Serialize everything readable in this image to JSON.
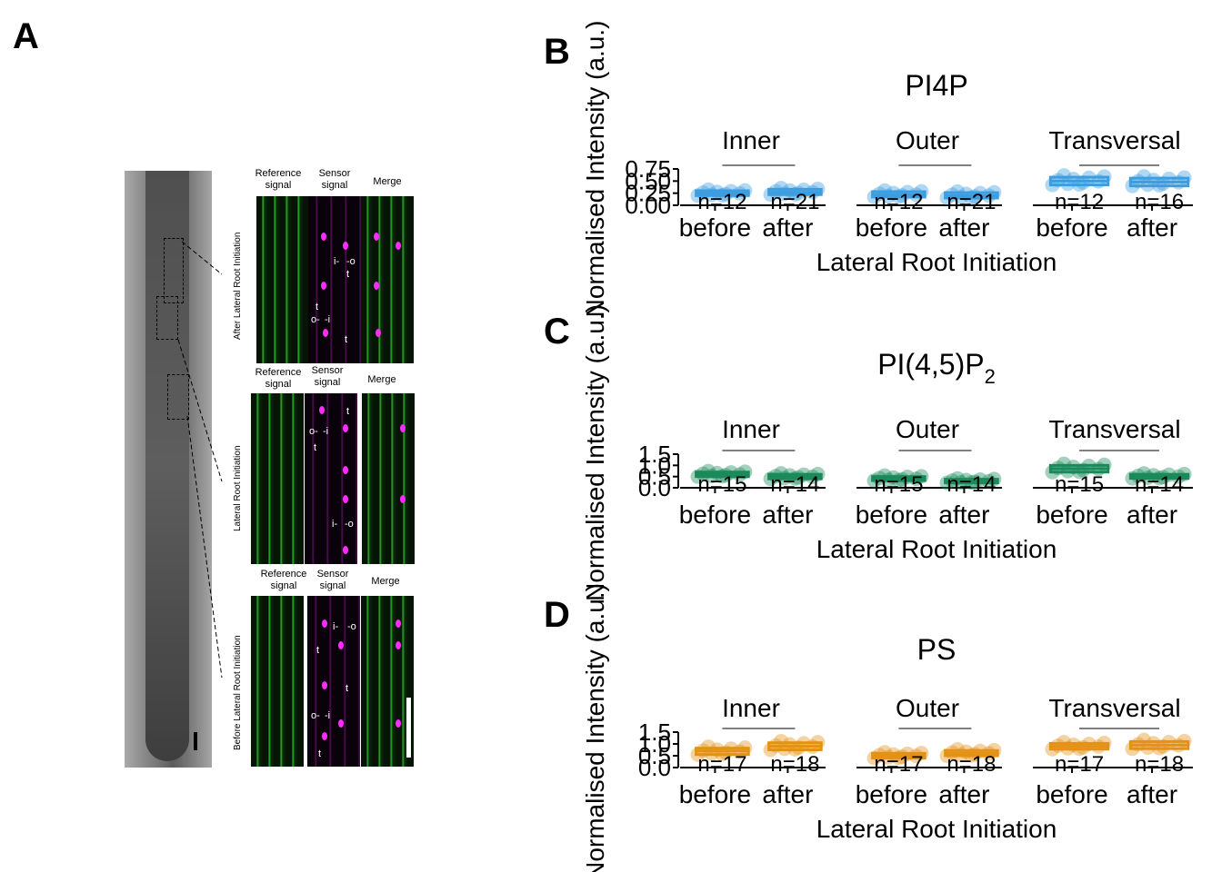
{
  "panelA": {
    "letter": "A",
    "rows": [
      {
        "side_label": "After Lateral Root Initiation",
        "headers": [
          "Reference\nsignal",
          "Sensor\nsignal",
          "Merge"
        ],
        "marks": [
          "i-",
          "-o",
          "t",
          "t",
          "o-",
          "-i",
          "t"
        ]
      },
      {
        "side_label": "Lateral Root Initiation",
        "headers": [
          "Reference\nsignal",
          "Sensor\nsignal",
          "Merge"
        ],
        "marks": [
          "t",
          "o-",
          "-i",
          "t",
          "i-",
          "-o"
        ]
      },
      {
        "side_label": "Before Lateral Root Initiation",
        "headers": [
          "Reference\nsignal",
          "Sensor\nsignal",
          "Merge"
        ],
        "marks": [
          "i-",
          "-o",
          "t",
          "t",
          "o-",
          "-i",
          "t"
        ]
      }
    ]
  },
  "chart_data": [
    {
      "letter": "B",
      "type": "box",
      "title": "PI4P",
      "title_sub": "",
      "xlabel": "Lateral Root Initiation",
      "ylabel": "Normalised Intensity (a.u.)",
      "color": "#3c9ee0",
      "ylim": [
        0,
        0.75
      ],
      "yticks": [
        "0.00",
        "0.25",
        "0.50",
        "0.75"
      ],
      "facets": [
        "Inner",
        "Outer",
        "Transversal"
      ],
      "categories": [
        "before",
        "after"
      ],
      "groups": [
        {
          "facet": "Inner",
          "cat": "before",
          "n": "n=12",
          "median": 0.25,
          "q1": 0.2,
          "q3": 0.3
        },
        {
          "facet": "Inner",
          "cat": "after",
          "n": "n=21",
          "median": 0.27,
          "q1": 0.22,
          "q3": 0.33
        },
        {
          "facet": "Outer",
          "cat": "before",
          "n": "n=12",
          "median": 0.22,
          "q1": 0.17,
          "q3": 0.28
        },
        {
          "facet": "Outer",
          "cat": "after",
          "n": "n=21",
          "median": 0.2,
          "q1": 0.15,
          "q3": 0.26
        },
        {
          "facet": "Transversal",
          "cat": "before",
          "n": "n=12",
          "median": 0.5,
          "q1": 0.42,
          "q3": 0.58
        },
        {
          "facet": "Transversal",
          "cat": "after",
          "n": "n=16",
          "median": 0.48,
          "q1": 0.4,
          "q3": 0.56
        }
      ]
    },
    {
      "letter": "C",
      "type": "box",
      "title": "PI(4,5)P",
      "title_sub": "2",
      "xlabel": "Lateral Root Initiation",
      "ylabel": "Normalised Intensity (a.u.)",
      "color": "#1a8a5a",
      "ylim": [
        0,
        1.5
      ],
      "yticks": [
        "0.0",
        "0.5",
        "1.0",
        "1.5"
      ],
      "facets": [
        "Inner",
        "Outer",
        "Transversal"
      ],
      "categories": [
        "before",
        "after"
      ],
      "groups": [
        {
          "facet": "Inner",
          "cat": "before",
          "n": "n=15",
          "median": 0.6,
          "q1": 0.5,
          "q3": 0.7
        },
        {
          "facet": "Inner",
          "cat": "after",
          "n": "n=14",
          "median": 0.5,
          "q1": 0.4,
          "q3": 0.6
        },
        {
          "facet": "Outer",
          "cat": "before",
          "n": "n=15",
          "median": 0.4,
          "q1": 0.32,
          "q3": 0.5
        },
        {
          "facet": "Outer",
          "cat": "after",
          "n": "n=14",
          "median": 0.3,
          "q1": 0.22,
          "q3": 0.38
        },
        {
          "facet": "Transversal",
          "cat": "before",
          "n": "n=15",
          "median": 0.85,
          "q1": 0.7,
          "q3": 1.0
        },
        {
          "facet": "Transversal",
          "cat": "after",
          "n": "n=14",
          "median": 0.5,
          "q1": 0.42,
          "q3": 0.6
        }
      ]
    },
    {
      "letter": "D",
      "type": "box",
      "title": "PS",
      "title_sub": "",
      "xlabel": "Lateral Root Initiation",
      "ylabel": "Normalised Intensity (a.u.)",
      "color": "#e39216",
      "ylim": [
        0,
        1.5
      ],
      "yticks": [
        "0.0",
        "0.5",
        "1.0",
        "1.5"
      ],
      "facets": [
        "Inner",
        "Outer",
        "Transversal"
      ],
      "categories": [
        "before",
        "after"
      ],
      "groups": [
        {
          "facet": "Inner",
          "cat": "before",
          "n": "n=17",
          "median": 0.7,
          "q1": 0.55,
          "q3": 0.82
        },
        {
          "facet": "Inner",
          "cat": "after",
          "n": "n=18",
          "median": 0.9,
          "q1": 0.75,
          "q3": 1.05
        },
        {
          "facet": "Outer",
          "cat": "before",
          "n": "n=17",
          "median": 0.5,
          "q1": 0.4,
          "q3": 0.6
        },
        {
          "facet": "Outer",
          "cat": "after",
          "n": "n=18",
          "median": 0.6,
          "q1": 0.5,
          "q3": 0.72
        },
        {
          "facet": "Transversal",
          "cat": "before",
          "n": "n=17",
          "median": 0.9,
          "q1": 0.78,
          "q3": 1.02
        },
        {
          "facet": "Transversal",
          "cat": "after",
          "n": "n=18",
          "median": 0.95,
          "q1": 0.8,
          "q3": 1.1
        }
      ]
    }
  ]
}
